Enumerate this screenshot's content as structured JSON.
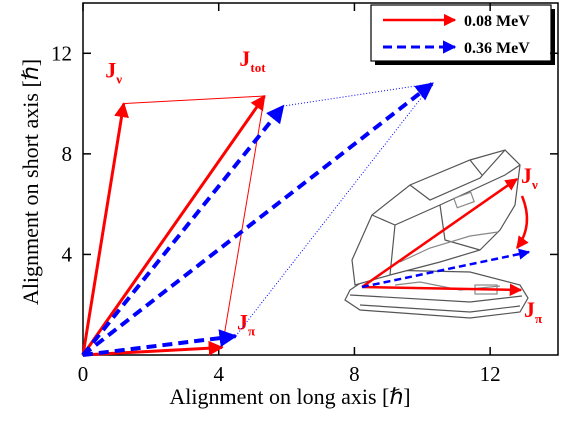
{
  "chart_data": {
    "type": "vector",
    "x_label": "Alignment on long axis [ℏ]",
    "y_label": "Alignment on short axis [ℏ]",
    "xlim": [
      0,
      14
    ],
    "ylim": [
      0,
      14
    ],
    "xticks": [
      0,
      4,
      8,
      12
    ],
    "yticks": [
      4,
      8,
      12
    ],
    "series": [
      {
        "name": "0.08 MeV",
        "color": "#ff0000",
        "dash": false,
        "vectors": [
          {
            "label": "J",
            "sub": "ν",
            "x": 1.2,
            "y": 10.0
          },
          {
            "label": "J",
            "sub": "tot",
            "x": 5.35,
            "y": 10.3
          },
          {
            "label": "J",
            "sub": "π",
            "x": 4.1,
            "y": 0.3
          }
        ]
      },
      {
        "name": "0.36 MeV",
        "color": "#0000ff",
        "dash": true,
        "vectors": [
          {
            "x": 5.9,
            "y": 9.9
          },
          {
            "x": 10.3,
            "y": 10.8
          },
          {
            "x": 4.5,
            "y": 0.75
          }
        ]
      }
    ],
    "inset_labels": [
      {
        "text": "J",
        "sub": "ν"
      },
      {
        "text": "J",
        "sub": "π"
      }
    ]
  }
}
